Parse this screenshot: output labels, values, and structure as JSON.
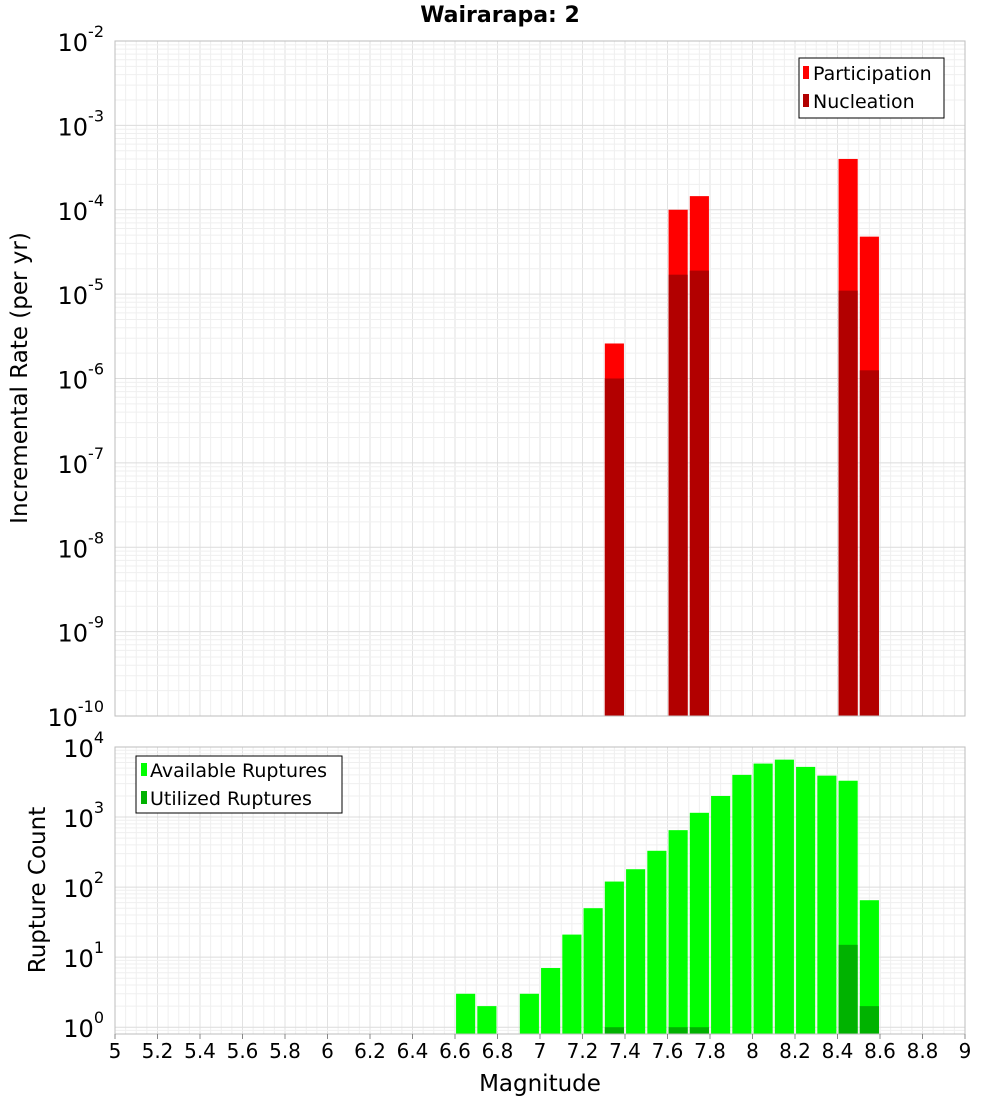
{
  "chart_data": [
    {
      "type": "bar",
      "title": "Wairarapa: 2",
      "ylabel": "Incremental Rate (per yr)",
      "yscale": "log",
      "ylim": [
        1e-10,
        0.01
      ],
      "xlim": [
        5,
        9
      ],
      "grid": true,
      "legend_position": "top-right",
      "ytick_labels": [
        {
          "base": "10",
          "exp": "-10",
          "value": 1e-10
        },
        {
          "base": "10",
          "exp": "-9",
          "value": 1e-09
        },
        {
          "base": "10",
          "exp": "-8",
          "value": 1e-08
        },
        {
          "base": "10",
          "exp": "-7",
          "value": 1e-07
        },
        {
          "base": "10",
          "exp": "-6",
          "value": 1e-06
        },
        {
          "base": "10",
          "exp": "-5",
          "value": 1e-05
        },
        {
          "base": "10",
          "exp": "-4",
          "value": 0.0001
        },
        {
          "base": "10",
          "exp": "-3",
          "value": 0.001
        },
        {
          "base": "10",
          "exp": "-2",
          "value": 0.01
        }
      ],
      "series": [
        {
          "name": "Participation",
          "color": "#ff0000",
          "points": [
            {
              "x": 7.35,
              "y": 2.6e-06
            },
            {
              "x": 7.65,
              "y": 0.0001
            },
            {
              "x": 7.75,
              "y": 0.000145
            },
            {
              "x": 8.45,
              "y": 0.0004
            },
            {
              "x": 8.55,
              "y": 4.8e-05
            }
          ]
        },
        {
          "name": "Nucleation",
          "color": "#b20000",
          "points": [
            {
              "x": 7.35,
              "y": 1e-06
            },
            {
              "x": 7.65,
              "y": 1.7e-05
            },
            {
              "x": 7.75,
              "y": 1.9e-05
            },
            {
              "x": 8.45,
              "y": 1.1e-05
            },
            {
              "x": 8.55,
              "y": 1.25e-06
            }
          ]
        }
      ]
    },
    {
      "type": "bar",
      "xlabel": "Magnitude",
      "ylabel": "Rupture Count",
      "yscale": "log",
      "ylim": [
        0.8,
        10000
      ],
      "xlim": [
        5,
        9
      ],
      "grid": true,
      "legend_position": "top-left",
      "xtick_labels": [
        "5",
        "5.2",
        "5.4",
        "5.6",
        "5.8",
        "6",
        "6.2",
        "6.4",
        "6.6",
        "6.8",
        "7",
        "7.2",
        "7.4",
        "7.6",
        "7.8",
        "8",
        "8.2",
        "8.4",
        "8.6",
        "8.8",
        "9"
      ],
      "ytick_labels": [
        {
          "base": "10",
          "exp": "0",
          "value": 1
        },
        {
          "base": "10",
          "exp": "1",
          "value": 10
        },
        {
          "base": "10",
          "exp": "2",
          "value": 100
        },
        {
          "base": "10",
          "exp": "3",
          "value": 1000
        },
        {
          "base": "10",
          "exp": "4",
          "value": 10000
        }
      ],
      "series": [
        {
          "name": "Available Ruptures",
          "color": "#00ff00",
          "points": [
            {
              "x": 6.65,
              "y": 3
            },
            {
              "x": 6.75,
              "y": 2
            },
            {
              "x": 6.95,
              "y": 3
            },
            {
              "x": 7.05,
              "y": 7
            },
            {
              "x": 7.15,
              "y": 21
            },
            {
              "x": 7.25,
              "y": 50
            },
            {
              "x": 7.35,
              "y": 120
            },
            {
              "x": 7.45,
              "y": 180
            },
            {
              "x": 7.55,
              "y": 330
            },
            {
              "x": 7.65,
              "y": 650
            },
            {
              "x": 7.75,
              "y": 1150
            },
            {
              "x": 7.85,
              "y": 2000
            },
            {
              "x": 7.95,
              "y": 4000
            },
            {
              "x": 8.05,
              "y": 5800
            },
            {
              "x": 8.15,
              "y": 6600
            },
            {
              "x": 8.25,
              "y": 5200
            },
            {
              "x": 8.35,
              "y": 3900
            },
            {
              "x": 8.45,
              "y": 3300
            },
            {
              "x": 8.55,
              "y": 65
            }
          ]
        },
        {
          "name": "Utilized Ruptures",
          "color": "#00b200",
          "points": [
            {
              "x": 7.35,
              "y": 1
            },
            {
              "x": 7.65,
              "y": 1
            },
            {
              "x": 7.75,
              "y": 1
            },
            {
              "x": 8.45,
              "y": 15
            },
            {
              "x": 8.55,
              "y": 2
            }
          ]
        }
      ]
    }
  ]
}
